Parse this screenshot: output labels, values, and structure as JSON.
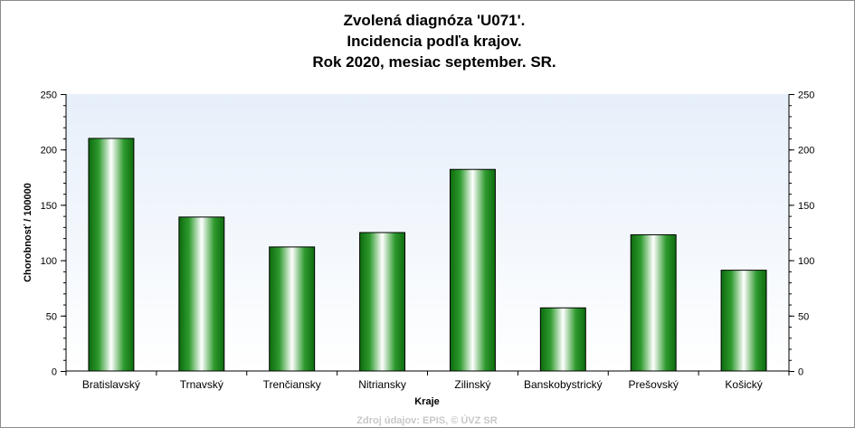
{
  "chart_data": {
    "type": "bar",
    "title_lines": [
      "Zvolená diagnóza 'U071'.",
      "Incidencia podľa krajov.",
      "Rok 2020, mesiac september. SR."
    ],
    "xlabel": "Kraje",
    "ylabel": "Chorobnosť / 100000",
    "categories": [
      "Bratislavský",
      "Trnavský",
      "Trenčiansky",
      "Nitriansky",
      "Zilinský",
      "Banskobystrický",
      "Prešovský",
      "Košický"
    ],
    "values": [
      210,
      139,
      112,
      125,
      182,
      57,
      123,
      91
    ],
    "ylim": [
      0,
      250
    ],
    "yticks": [
      0,
      50,
      100,
      150,
      200,
      250
    ],
    "yticks_right": true,
    "grid": false,
    "legend": "none",
    "bar_color": "#1f8a1f",
    "source": "Zdroj údajov: EPIS, © ÚVZ SR"
  }
}
